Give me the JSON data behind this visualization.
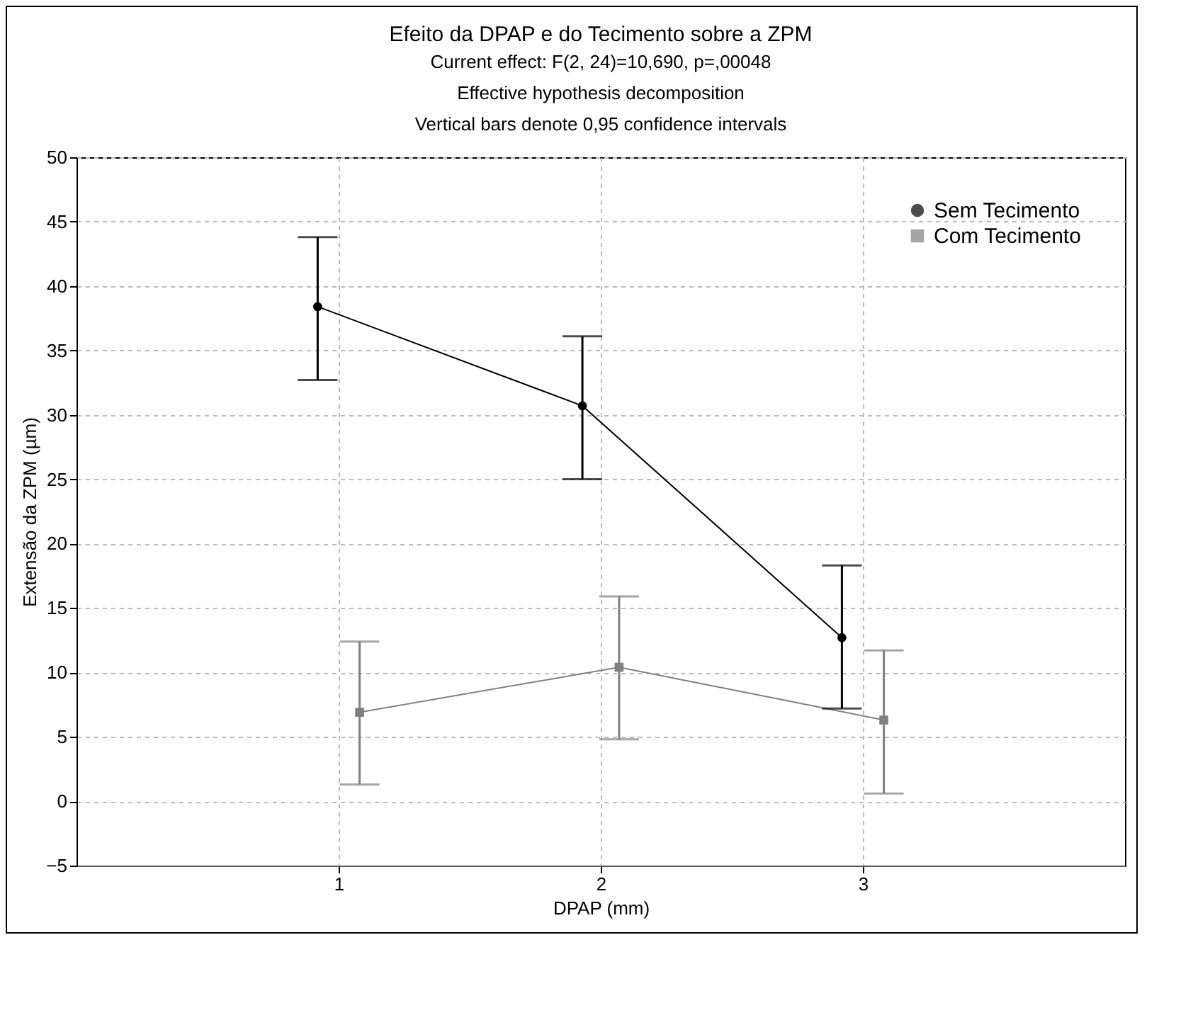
{
  "chart_data": {
    "type": "line",
    "title": "Efeito da DPAP e do Tecimento sobre a ZPM",
    "subtitle": "Current effect: F(2, 24)=10,690, p=,00048\nEffective hypothesis decomposition\nVertical bars denote 0,95 confidence intervals",
    "xlabel": "DPAP (mm)",
    "ylabel": "Extensão da ZPM (µm)",
    "xlim": [
      0,
      4
    ],
    "xticks": [
      1,
      2,
      3
    ],
    "ylim": [
      -5,
      50
    ],
    "yticks": [
      -5,
      0,
      5,
      10,
      15,
      20,
      25,
      30,
      35,
      40,
      45,
      50
    ],
    "grid": true,
    "legend": "top right",
    "series": [
      {
        "name": "Sem Tecimento",
        "color": "#000000",
        "marker": "circle",
        "x": [
          0.92,
          1.93,
          2.92
        ],
        "values": [
          38.4,
          30.7,
          12.7
        ],
        "errors": [
          [
            32.7,
            43.8
          ],
          [
            25.0,
            36.1
          ],
          [
            7.2,
            18.3
          ]
        ]
      },
      {
        "name": "Com Tecimento",
        "color": "#808080",
        "marker": "square",
        "x": [
          1.08,
          2.07,
          3.08
        ],
        "values": [
          6.9,
          10.4,
          6.3
        ],
        "errors": [
          [
            1.3,
            12.4
          ],
          [
            4.8,
            15.9
          ],
          [
            0.6,
            11.7
          ]
        ]
      }
    ]
  }
}
